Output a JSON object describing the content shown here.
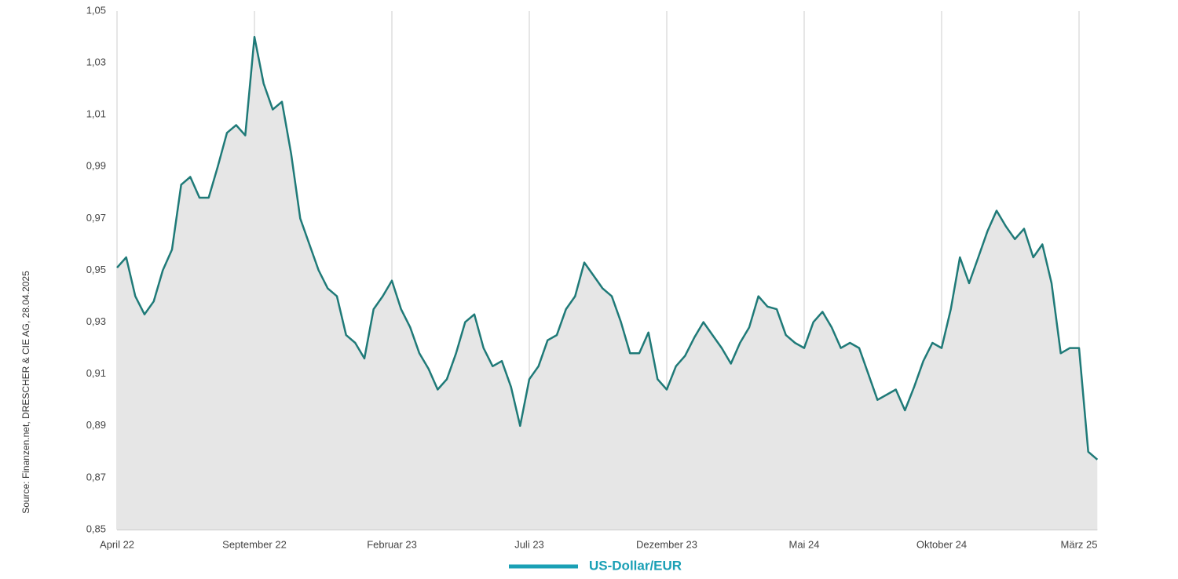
{
  "chart_data": {
    "type": "line",
    "source": "Source: Finanzen.net, DRESCHER & CIE AG, 28.04.2025",
    "categories": [
      "April 22",
      null,
      null,
      null,
      null,
      null,
      null,
      null,
      null,
      null,
      null,
      null,
      null,
      null,
      null,
      "September 22",
      null,
      null,
      null,
      null,
      null,
      null,
      null,
      null,
      null,
      null,
      null,
      null,
      null,
      null,
      "Februar 23",
      null,
      null,
      null,
      null,
      null,
      null,
      null,
      null,
      null,
      null,
      null,
      null,
      null,
      null,
      "Juli 23",
      null,
      null,
      null,
      null,
      null,
      null,
      null,
      null,
      null,
      null,
      null,
      null,
      null,
      null,
      "Dezember 23",
      null,
      null,
      null,
      null,
      null,
      null,
      null,
      null,
      null,
      null,
      null,
      null,
      null,
      null,
      "Mai 24",
      null,
      null,
      null,
      null,
      null,
      null,
      null,
      null,
      null,
      null,
      null,
      null,
      null,
      null,
      "Oktober 24",
      null,
      null,
      null,
      null,
      null,
      null,
      null,
      null,
      null,
      null,
      null,
      null,
      null,
      null,
      "März 25",
      null,
      null
    ],
    "series": [
      {
        "name": "US-Dollar/EUR",
        "color": "#1f7a78",
        "values": [
          0.951,
          0.955,
          0.94,
          0.933,
          0.938,
          0.95,
          0.958,
          0.983,
          0.986,
          0.978,
          0.978,
          0.99,
          1.003,
          1.006,
          1.002,
          1.04,
          1.022,
          1.012,
          1.015,
          0.995,
          0.97,
          0.96,
          0.95,
          0.943,
          0.94,
          0.925,
          0.922,
          0.916,
          0.935,
          0.94,
          0.946,
          0.935,
          0.928,
          0.918,
          0.912,
          0.904,
          0.908,
          0.918,
          0.93,
          0.933,
          0.92,
          0.913,
          0.915,
          0.905,
          0.89,
          0.908,
          0.913,
          0.923,
          0.925,
          0.935,
          0.94,
          0.953,
          0.948,
          0.943,
          0.94,
          0.93,
          0.918,
          0.918,
          0.926,
          0.908,
          0.904,
          0.913,
          0.917,
          0.924,
          0.93,
          0.925,
          0.92,
          0.914,
          0.922,
          0.928,
          0.94,
          0.936,
          0.935,
          0.925,
          0.922,
          0.92,
          0.93,
          0.934,
          0.928,
          0.92,
          0.922,
          0.92,
          0.91,
          0.9,
          0.902,
          0.904,
          0.896,
          0.905,
          0.915,
          0.922,
          0.92,
          0.935,
          0.955,
          0.945,
          0.955,
          0.965,
          0.973,
          0.967,
          0.962,
          0.966,
          0.955,
          0.96,
          0.945,
          0.918,
          0.92,
          0.92,
          0.88,
          0.877
        ]
      }
    ],
    "ylim": [
      0.85,
      1.05
    ],
    "yticks": [
      {
        "value": 0.85,
        "label": "0,85"
      },
      {
        "value": 0.87,
        "label": "0,87"
      },
      {
        "value": 0.89,
        "label": "0,89"
      },
      {
        "value": 0.91,
        "label": "0,91"
      },
      {
        "value": 0.93,
        "label": "0,93"
      },
      {
        "value": 0.95,
        "label": "0,95"
      },
      {
        "value": 0.97,
        "label": "0,97"
      },
      {
        "value": 0.99,
        "label": "0,99"
      },
      {
        "value": 1.01,
        "label": "1,01"
      },
      {
        "value": 1.03,
        "label": "1,03"
      },
      {
        "value": 1.05,
        "label": "1,05"
      }
    ],
    "grid": true
  }
}
